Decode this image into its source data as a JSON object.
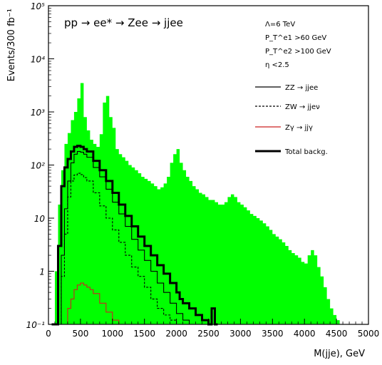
{
  "chart_data": {
    "type": "area",
    "title": "pp → ee* → Zee → jjee",
    "xlabel": "M(jje), GeV",
    "ylabel": "Events/300 fb⁻¹",
    "xlim": [
      0,
      5000
    ],
    "ylim_log10": [
      -1,
      5
    ],
    "yscale": "log",
    "x_ticks": [
      0,
      500,
      1000,
      1500,
      2000,
      2500,
      3000,
      3500,
      4000,
      4500,
      5000
    ],
    "x_tick_labels": [
      "0",
      "500",
      "1000",
      "1500",
      "2000",
      "2500",
      "3000",
      "3500",
      "4000",
      "4500",
      "5000"
    ],
    "y_tick_labels": [
      {
        "value": 0.1,
        "label": "10⁻¹"
      },
      {
        "value": 1,
        "label": "1"
      },
      {
        "value": 10,
        "label": "10"
      },
      {
        "value": 100,
        "label": "10²"
      },
      {
        "value": 1000,
        "label": "10³"
      },
      {
        "value": 10000,
        "label": "10⁴"
      },
      {
        "value": 100000,
        "label": "10⁵"
      }
    ],
    "annotations": [
      "Λ=6 TeV",
      "P_T^e1 >60 GeV",
      "P_T^e2 >100 GeV",
      "η <2.5"
    ],
    "signal": {
      "color": "#00ff00",
      "bin_edges": [
        50,
        100,
        150,
        200,
        250,
        300,
        350,
        400,
        450,
        500,
        550,
        600,
        650,
        700,
        750,
        800,
        850,
        900,
        950,
        1000,
        1050,
        1100,
        1150,
        1200,
        1250,
        1300,
        1350,
        1400,
        1450,
        1500,
        1550,
        1600,
        1650,
        1700,
        1750,
        1800,
        1850,
        1900,
        1950,
        2000,
        2050,
        2100,
        2150,
        2200,
        2250,
        2300,
        2350,
        2400,
        2450,
        2500,
        2550,
        2600,
        2650,
        2700,
        2750,
        2800,
        2850,
        2900,
        2950,
        3000,
        3050,
        3100,
        3150,
        3200,
        3250,
        3300,
        3350,
        3400,
        3450,
        3500,
        3550,
        3600,
        3650,
        3700,
        3750,
        3800,
        3850,
        3900,
        3950,
        4000,
        4050,
        4100,
        4150,
        4200,
        4250,
        4300,
        4350,
        4400,
        4450,
        4500,
        4550,
        4600
      ],
      "values": [
        0.1,
        1.0,
        18,
        80,
        250,
        400,
        700,
        1000,
        1800,
        3500,
        800,
        450,
        300,
        250,
        220,
        380,
        1500,
        2000,
        800,
        500,
        200,
        160,
        140,
        120,
        100,
        90,
        80,
        70,
        60,
        55,
        50,
        45,
        40,
        35,
        38,
        45,
        60,
        110,
        160,
        200,
        110,
        80,
        60,
        50,
        40,
        35,
        30,
        28,
        25,
        22,
        22,
        20,
        18,
        18,
        20,
        25,
        28,
        25,
        20,
        18,
        16,
        14,
        12,
        11,
        10,
        9,
        8,
        7,
        6,
        5,
        4.5,
        4,
        3.5,
        3,
        2.5,
        2.2,
        2,
        1.8,
        1.5,
        1.4,
        2,
        2.5,
        2,
        1.2,
        0.8,
        0.5,
        0.3,
        0.2,
        0.15,
        0.12,
        0.1
      ]
    },
    "series": [
      {
        "name": "ZZ → jjee",
        "legend_label": "ZZ → jjee",
        "color": "#000000",
        "style": "solid",
        "x": [
          100,
          200,
          250,
          300,
          350,
          400,
          450,
          500,
          550,
          600,
          700,
          800,
          900,
          1000,
          1100,
          1200,
          1300,
          1400,
          1500,
          1600,
          1700,
          1800,
          1900,
          2000,
          2100,
          2200,
          2300,
          2400,
          2500
        ],
        "y": [
          0.1,
          2,
          15,
          50,
          110,
          160,
          180,
          175,
          160,
          140,
          90,
          60,
          35,
          20,
          12,
          7,
          4,
          2.5,
          1.6,
          1.0,
          0.6,
          0.4,
          0.25,
          0.16,
          0.12,
          0.1,
          0.1,
          0.1,
          0.1
        ]
      },
      {
        "name": "ZW → jjeν",
        "legend_label": "ZW → jjeν",
        "color": "#000000",
        "style": "dashed",
        "x": [
          100,
          200,
          250,
          300,
          350,
          400,
          450,
          500,
          550,
          600,
          700,
          800,
          900,
          1000,
          1100,
          1200,
          1300,
          1400,
          1500,
          1600,
          1700,
          1800,
          1900,
          2000,
          2100,
          2200
        ],
        "y": [
          0.1,
          0.8,
          5,
          25,
          50,
          65,
          70,
          66,
          58,
          50,
          30,
          17,
          10,
          6,
          3.5,
          2,
          1.2,
          0.8,
          0.5,
          0.3,
          0.2,
          0.15,
          0.12,
          0.1,
          0.1,
          0.1
        ]
      },
      {
        "name": "Zγ → jjγ",
        "legend_label": "Zγ → jjγ",
        "color": "#cc2222",
        "style": "solid",
        "x": [
          250,
          300,
          350,
          400,
          450,
          500,
          550,
          600,
          650,
          700,
          800,
          900,
          1000,
          1100
        ],
        "y": [
          0.1,
          0.2,
          0.3,
          0.45,
          0.55,
          0.6,
          0.55,
          0.5,
          0.45,
          0.38,
          0.25,
          0.17,
          0.12,
          0.1
        ]
      },
      {
        "name": "Total backg.",
        "legend_label": "Total backg.",
        "color": "#000000",
        "style": "thick",
        "x": [
          50,
          100,
          150,
          200,
          250,
          300,
          350,
          400,
          450,
          500,
          550,
          600,
          700,
          800,
          900,
          1000,
          1100,
          1200,
          1300,
          1400,
          1500,
          1600,
          1700,
          1800,
          1900,
          2000,
          2050,
          2100,
          2200,
          2300,
          2400,
          2500,
          2550,
          2600
        ],
        "y": [
          0.1,
          0.1,
          3,
          40,
          90,
          130,
          180,
          220,
          230,
          220,
          200,
          180,
          120,
          80,
          50,
          30,
          18,
          11,
          7,
          4.5,
          3,
          2,
          1.3,
          0.9,
          0.6,
          0.4,
          0.3,
          0.25,
          0.2,
          0.15,
          0.12,
          0.1,
          0.2,
          0.1
        ]
      }
    ]
  }
}
